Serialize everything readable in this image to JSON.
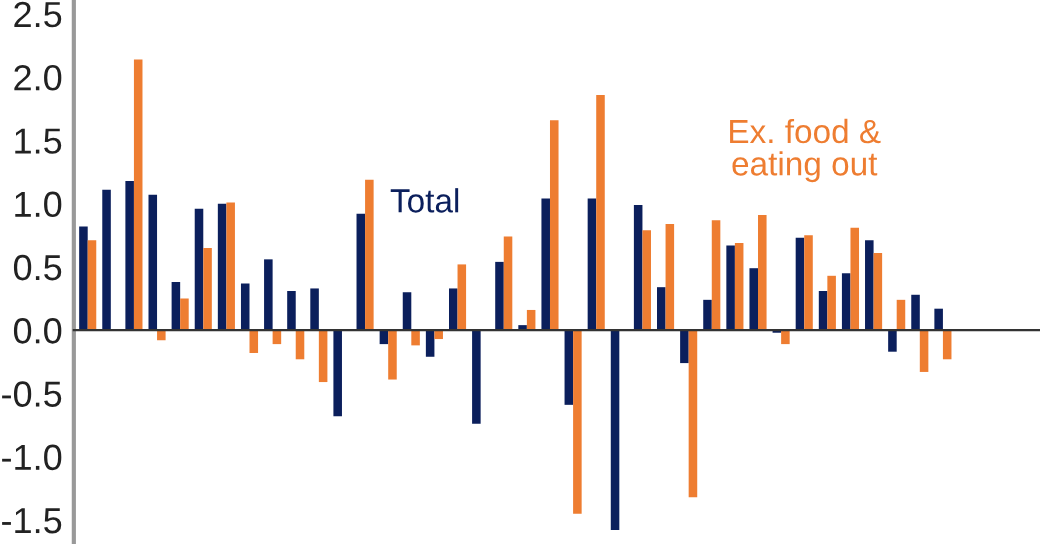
{
  "chart_data": {
    "type": "bar",
    "categories": [
      null,
      null,
      null,
      null,
      null,
      null,
      null,
      null,
      null,
      null,
      null,
      null,
      null,
      null,
      null,
      null,
      null,
      null,
      null,
      null,
      null,
      null,
      null,
      null,
      null,
      null,
      null,
      null,
      null,
      null,
      null,
      null,
      null,
      null,
      null,
      null,
      null,
      null,
      null,
      null,
      null,
      null
    ],
    "series": [
      {
        "name": "Total",
        "color": "#0b1f5c",
        "values": [
          0.82,
          1.11,
          1.18,
          1.07,
          0.38,
          0.96,
          1.0,
          0.37,
          0.56,
          0.31,
          0.33,
          -0.68,
          0.92,
          -0.11,
          0.3,
          -0.21,
          0.33,
          -0.74,
          0.54,
          0.04,
          1.04,
          -0.59,
          1.04,
          -1.58,
          0.99,
          0.34,
          -0.26,
          0.24,
          0.67,
          0.49,
          -0.02,
          0.73,
          0.31,
          0.45,
          0.71,
          -0.17,
          0.28,
          0.17,
          null,
          null,
          null,
          null
        ]
      },
      {
        "name": "Ex. food & eating out",
        "color": "#ee7d31",
        "values": [
          0.71,
          null,
          2.14,
          -0.08,
          0.25,
          0.65,
          1.01,
          -0.18,
          -0.11,
          -0.23,
          -0.41,
          null,
          1.19,
          -0.39,
          -0.12,
          -0.07,
          0.52,
          null,
          0.74,
          0.16,
          1.66,
          -1.45,
          1.86,
          null,
          0.79,
          0.84,
          -1.32,
          0.87,
          0.69,
          0.91,
          -0.11,
          0.75,
          0.43,
          0.81,
          0.61,
          0.24,
          -0.33,
          -0.23,
          null,
          null,
          null,
          null
        ]
      }
    ],
    "ylim": [
      -1.69,
      2.61
    ],
    "yticks": [
      {
        "value": -1.5,
        "label": "-1.5"
      },
      {
        "value": -1.0,
        "label": "-1.0"
      },
      {
        "value": -0.5,
        "label": "-0.5"
      },
      {
        "value": 0.0,
        "label": "0.0"
      },
      {
        "value": 0.5,
        "label": "0.5"
      },
      {
        "value": 1.0,
        "label": "1.0"
      },
      {
        "value": 1.5,
        "label": "1.5"
      },
      {
        "value": 2.0,
        "label": "2.0"
      },
      {
        "value": 2.5,
        "label": "2.5"
      }
    ],
    "tick_labels": "y"
  }
}
